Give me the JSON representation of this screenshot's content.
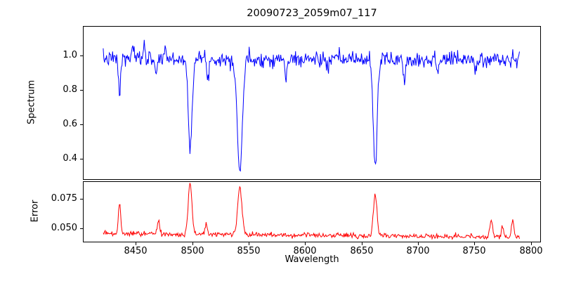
{
  "chart_data": {
    "type": "line",
    "title": "20090723_2059m07_117",
    "xlabel": "Wavelength",
    "xlim": [
      8403,
      8809
    ],
    "xticks": [
      {
        "value": 8450,
        "label": "8450"
      },
      {
        "value": 8500,
        "label": "8500"
      },
      {
        "value": 8550,
        "label": "8550"
      },
      {
        "value": 8600,
        "label": "8600"
      },
      {
        "value": 8650,
        "label": "8650"
      },
      {
        "value": 8700,
        "label": "8700"
      },
      {
        "value": 8750,
        "label": "8750"
      },
      {
        "value": 8800,
        "label": "8800"
      }
    ],
    "panels": [
      {
        "name": "spectrum",
        "ylabel": "Spectrum",
        "color": "#0000ff",
        "ylim": [
          0.28,
          1.17
        ],
        "yticks": [
          {
            "value": 1.0,
            "label": "1.0"
          },
          {
            "value": 0.8,
            "label": "0.8"
          },
          {
            "value": 0.6,
            "label": "0.6"
          },
          {
            "value": 0.4,
            "label": "0.4"
          }
        ],
        "series": {
          "x_start": 8421,
          "x_end": 8790,
          "n_points": 620,
          "seed": 7,
          "baseline_start": 0.98,
          "baseline_end": 0.975,
          "noise_sigma": 0.022,
          "lines": [
            {
              "center": 8435.5,
              "amplitude": -0.21,
              "sigma": 0.9
            },
            {
              "center": 8447.0,
              "amplitude": 0.1,
              "sigma": 0.6
            },
            {
              "center": 8457.5,
              "amplitude": 0.12,
              "sigma": 0.6
            },
            {
              "center": 8468.0,
              "amplitude": -0.09,
              "sigma": 0.8
            },
            {
              "center": 8476.0,
              "amplitude": 0.09,
              "sigma": 0.6
            },
            {
              "center": 8498.0,
              "amplitude": -0.5,
              "sigma": 1.7
            },
            {
              "center": 8514.0,
              "amplitude": -0.1,
              "sigma": 0.9
            },
            {
              "center": 8542.1,
              "amplitude": -0.65,
              "sigma": 2.2
            },
            {
              "center": 8583.0,
              "amplitude": -0.12,
              "sigma": 0.9
            },
            {
              "center": 8620.0,
              "amplitude": -0.07,
              "sigma": 0.8
            },
            {
              "center": 8662.1,
              "amplitude": -0.63,
              "sigma": 1.7
            },
            {
              "center": 8688.0,
              "amplitude": -0.13,
              "sigma": 0.9
            },
            {
              "center": 8717.0,
              "amplitude": -0.07,
              "sigma": 0.8
            },
            {
              "center": 8751.0,
              "amplitude": -0.08,
              "sigma": 0.8
            }
          ]
        }
      },
      {
        "name": "error",
        "ylabel": "Error",
        "color": "#ff0000",
        "ylim": [
          0.038,
          0.09
        ],
        "yticks": [
          {
            "value": 0.075,
            "label": "0.075"
          },
          {
            "value": 0.05,
            "label": "0.050"
          }
        ],
        "series": {
          "x_start": 8421,
          "x_end": 8790,
          "n_points": 620,
          "seed": 99,
          "baseline_start": 0.0455,
          "baseline_end": 0.0425,
          "noise_sigma": 0.0011,
          "lines": [
            {
              "center": 8435.5,
              "amplitude": 0.027,
              "sigma": 1.0
            },
            {
              "center": 8470.0,
              "amplitude": 0.012,
              "sigma": 1.0
            },
            {
              "center": 8498.0,
              "amplitude": 0.044,
              "sigma": 1.6
            },
            {
              "center": 8512.5,
              "amplitude": 0.009,
              "sigma": 1.0
            },
            {
              "center": 8542.1,
              "amplitude": 0.04,
              "sigma": 1.9
            },
            {
              "center": 8662.1,
              "amplitude": 0.035,
              "sigma": 1.6
            },
            {
              "center": 8765.0,
              "amplitude": 0.013,
              "sigma": 1.2
            },
            {
              "center": 8775.0,
              "amplitude": 0.009,
              "sigma": 1.0
            },
            {
              "center": 8784.0,
              "amplitude": 0.016,
              "sigma": 1.0
            }
          ]
        }
      }
    ]
  }
}
